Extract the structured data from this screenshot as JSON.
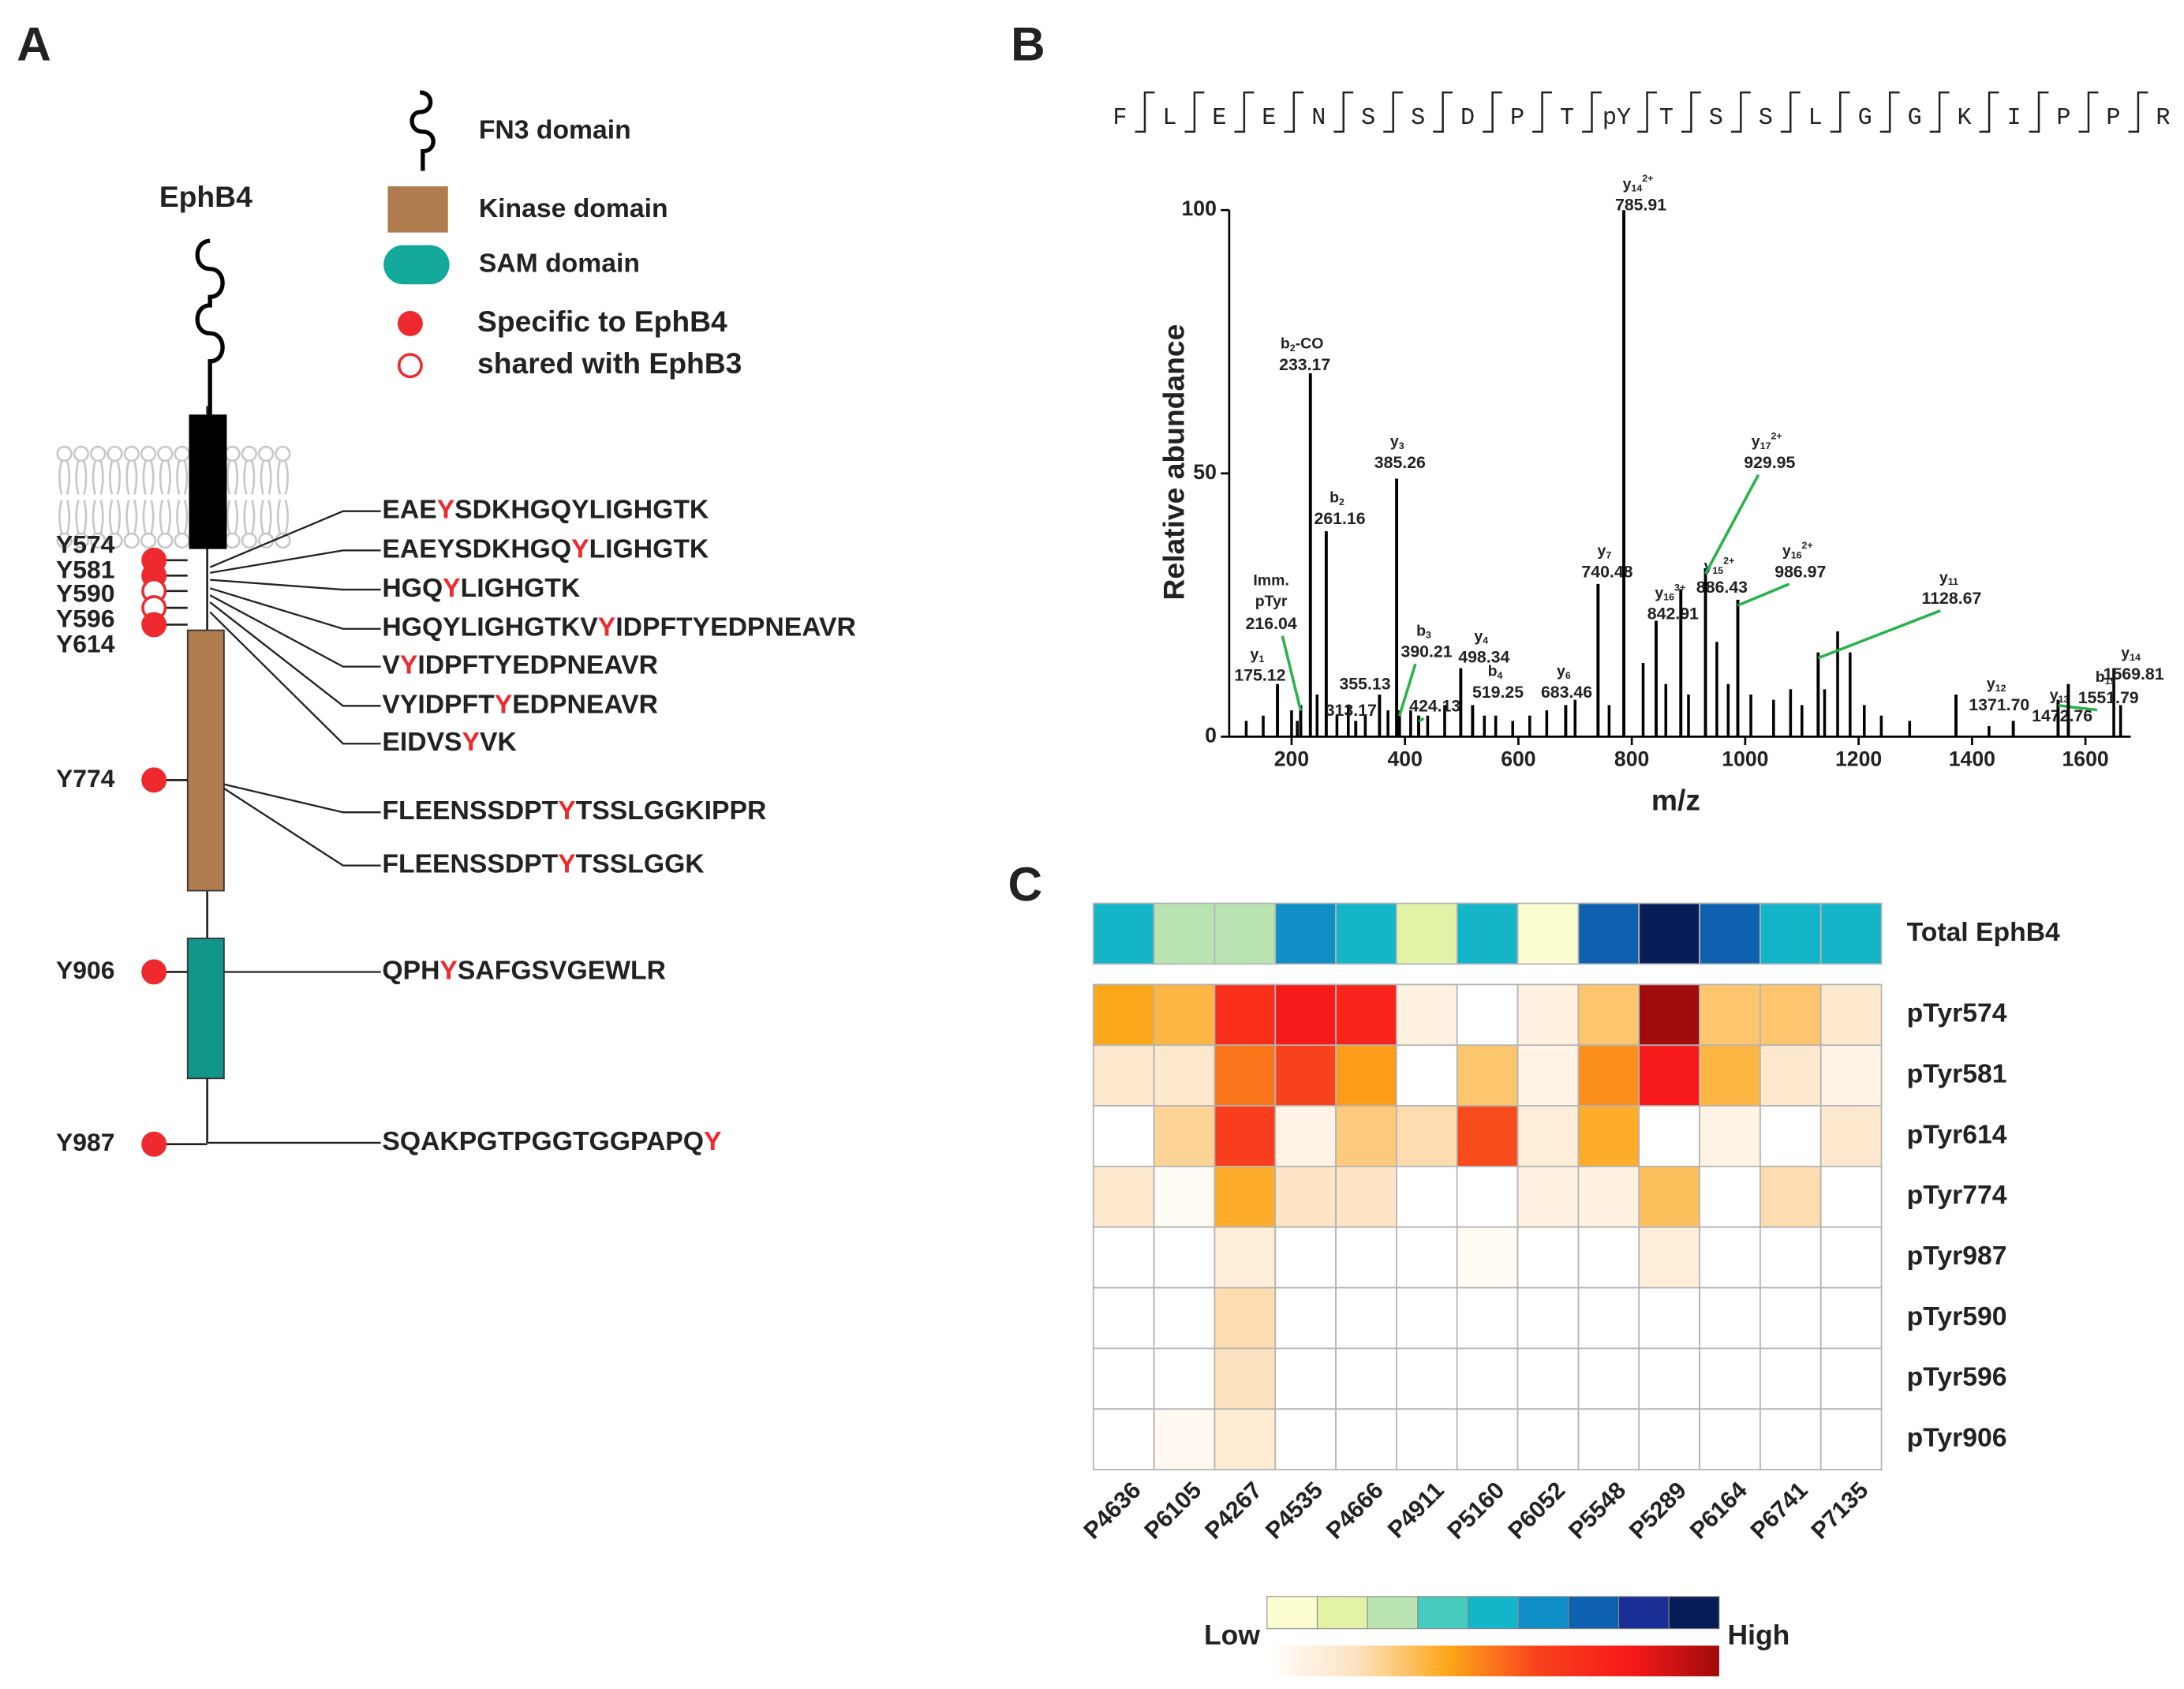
{
  "panel_labels": [
    "A",
    "B",
    "C"
  ],
  "diagram": {
    "protein": "EphB4",
    "site_color": "#ee2a2e",
    "legend": {
      "fn3": "FN3 domain",
      "kinase": "Kinase domain",
      "sam": "SAM domain",
      "specific": "Specific to EphB4",
      "shared": "shared with EphB3"
    },
    "sites": [
      {
        "name": "Y574",
        "shared": false
      },
      {
        "name": "Y581",
        "shared": false
      },
      {
        "name": "Y590",
        "shared": true
      },
      {
        "name": "Y596",
        "shared": true
      },
      {
        "name": "Y614",
        "shared": false
      },
      {
        "name": "Y774",
        "shared": false
      },
      {
        "name": "Y906",
        "shared": false
      },
      {
        "name": "Y987",
        "shared": false
      }
    ],
    "peptides": [
      {
        "before": "EAE",
        "site": "Y",
        "after": "SDKHGQYLIGHGTK"
      },
      {
        "before": "EAEYSDKHGQ",
        "site": "Y",
        "after": "LIGHGTK"
      },
      {
        "before": "HGQ",
        "site": "Y",
        "after": "LIGHGTK"
      },
      {
        "before": "HGQYLIGHGTKV",
        "site": "Y",
        "after": "IDPFTYEDPNEAVR"
      },
      {
        "before": "V",
        "site": "Y",
        "after": "IDPFTYEDPNEAVR"
      },
      {
        "before": "VYIDPFT",
        "site": "Y",
        "after": "EDPNEAVR"
      },
      {
        "before": "EIDVS",
        "site": "Y",
        "after": "VK"
      },
      {
        "before": "FLEENSSDPT",
        "site": "Y",
        "after": "TSSLGGKIPPR"
      },
      {
        "before": "FLEENSSDPT",
        "site": "Y",
        "after": "TSSLGGK"
      },
      {
        "before": "QPH",
        "site": "Y",
        "after": "SAFGSVGEWLR"
      },
      {
        "before": "SQAKPGTPGGTGGPAPQ",
        "site": "Y"
      }
    ]
  },
  "sequence": [
    "F",
    "L",
    "E",
    "E",
    "N",
    "S",
    "S",
    "D",
    "P",
    "T",
    "pY",
    "T",
    "S",
    "S",
    "L",
    "G",
    "G",
    "K",
    "I",
    "P",
    "P",
    "R"
  ],
  "chart_data": [
    {
      "type": "spectrum",
      "xlabel": "m/z",
      "ylabel": "Relative abundance",
      "xlim": [
        90,
        1680
      ],
      "ylim": [
        0,
        100
      ],
      "xticks": [
        200,
        400,
        600,
        800,
        1000,
        1200,
        1400,
        1600
      ],
      "yticks": [
        0,
        50,
        100
      ],
      "color": "#000000",
      "x": [
        120,
        150,
        200,
        210,
        245,
        280,
        300,
        330,
        370,
        410,
        440,
        470,
        540,
        560,
        590,
        620,
        650,
        700,
        760,
        820,
        860,
        900,
        950,
        970,
        1010,
        1050,
        1080,
        1100,
        1140,
        1163,
        1185,
        1210,
        1240,
        1290,
        1430,
        1650,
        1662
      ],
      "values": [
        3,
        4,
        5,
        3,
        8,
        4,
        6,
        4,
        5,
        5,
        4,
        6,
        4,
        4,
        3,
        4,
        5,
        7,
        6,
        14,
        10,
        8,
        18,
        10,
        8,
        7,
        9,
        6,
        9,
        20,
        16,
        6,
        4,
        3,
        2,
        13,
        6
      ],
      "annotations": [
        {
          "x": 175.12,
          "y": 10,
          "ion": {
            "base": "y",
            "sub": "1"
          },
          "color": "#3a5bab"
        },
        {
          "x": 216.04,
          "y": 6,
          "ion": {
            "base": "Imm.",
            "line2": "pTyr"
          },
          "color": "#3cb8c8"
        },
        {
          "x": 233.17,
          "y": 69,
          "ion": {
            "base": "b",
            "sub": "2",
            "suffix": "-CO"
          },
          "color": "#d42a2a"
        },
        {
          "x": 261.16,
          "y": 39,
          "ion": {
            "base": "b",
            "sub": "2"
          },
          "color": "#d42a2a"
        },
        {
          "x": 313.17,
          "y": 3
        },
        {
          "x": 355.13,
          "y": 8
        },
        {
          "x": 385.26,
          "y": 49,
          "ion": {
            "base": "y",
            "sub": "3"
          },
          "color": "#3a5bab"
        },
        {
          "x": 390.21,
          "y": 5,
          "ion": {
            "base": "b",
            "sub": "3"
          },
          "color": "#d42a2a"
        },
        {
          "x": 424.13,
          "y": 4
        },
        {
          "x": 498.34,
          "y": 13,
          "ion": {
            "base": "y",
            "sub": "4"
          },
          "color": "#3a5bab"
        },
        {
          "x": 519.25,
          "y": 6,
          "ion": {
            "base": "b",
            "sub": "4"
          },
          "color": "#d42a2a"
        },
        {
          "x": 683.46,
          "y": 6,
          "ion": {
            "base": "y",
            "sub": "6"
          },
          "color": "#3a5bab"
        },
        {
          "x": 740.48,
          "y": 29,
          "ion": {
            "base": "y",
            "sub": "7"
          },
          "color": "#3a5bab"
        },
        {
          "x": 785.91,
          "y": 100,
          "ion": {
            "base": "y",
            "sub": "14",
            "sup": "2+"
          },
          "color": "#3a5bab"
        },
        {
          "x": 842.91,
          "y": 22,
          "ion": {
            "base": "y",
            "sub": "16",
            "sup": "3+"
          },
          "color": "#3a5bab"
        },
        {
          "x": 886.43,
          "y": 28,
          "ion": {
            "base": "y",
            "sub": "15",
            "sup": "2+"
          },
          "color": "#3a5bab"
        },
        {
          "x": 929.95,
          "y": 32,
          "ion": {
            "base": "y",
            "sub": "17",
            "sup": "2+"
          },
          "color": "#3a5bab"
        },
        {
          "x": 986.97,
          "y": 26,
          "ion": {
            "base": "y",
            "sub": "16",
            "sup": "2+"
          },
          "color": "#3a5bab"
        },
        {
          "x": 1128.67,
          "y": 16,
          "ion": {
            "base": "y",
            "sub": "11"
          },
          "color": "#3a5bab"
        },
        {
          "x": 1371.7,
          "label": "1371.70",
          "y": 8,
          "ion": {
            "base": "y",
            "sub": "12"
          },
          "color": "#3a5bab"
        },
        {
          "x": 1472.76,
          "y": 3,
          "ion": {
            "base": "y",
            "sub": "13"
          },
          "color": "#3a5bab"
        },
        {
          "x": 1551.79,
          "y": 7,
          "ion": {
            "base": "b",
            "sub": "15"
          },
          "color": "#d42a2a"
        },
        {
          "x": 1569.81,
          "y": 10,
          "ion": {
            "base": "y",
            "sub": "14"
          },
          "color": "#3a5bab"
        }
      ]
    },
    {
      "type": "heatmap",
      "columns": [
        "P4636",
        "P6105",
        "P4267",
        "P4535",
        "P4666",
        "P4911",
        "P5160",
        "P6052",
        "P5548",
        "P5289",
        "P6164",
        "P6741",
        "P7135"
      ],
      "scale_labels": [
        "Low",
        "High"
      ],
      "groups": [
        {
          "rows": [
            "Total EphB4"
          ],
          "colors": [
            "#fbfdd0",
            "#e2f3a8",
            "#b9e4b1",
            "#47cbbd",
            "#14b5c9",
            "#0f8fc6",
            "#0d61ae",
            "#1a2f96",
            "#081d58"
          ],
          "values": [
            [
              0.5,
              0.25,
              0.25,
              0.625,
              0.5,
              0.125,
              0.5,
              0,
              0.75,
              1,
              0.75,
              0.5,
              0.5
            ]
          ]
        },
        {
          "rows": [
            "pTyr574",
            "pTyr581",
            "pTyr614",
            "pTyr774",
            "pTyr987",
            "pTyr590",
            "pTyr596",
            "pTyr906"
          ],
          "colors": [
            "#ffffff",
            "#fde2bf",
            "#fda71a",
            "#f8421c",
            "#f81a1a",
            "#a10b0b"
          ],
          "values": [
            [
              0.4,
              0.35,
              0.7,
              0.8,
              0.75,
              0.1,
              0,
              0.1,
              0.3,
              1,
              0.3,
              0.3,
              0.15
            ],
            [
              0.15,
              0.15,
              0.5,
              0.6,
              0.42,
              0,
              0.3,
              0.08,
              0.45,
              0.8,
              0.35,
              0.15,
              0.08
            ],
            [
              0,
              0.25,
              0.62,
              0.08,
              0.28,
              0.22,
              0.58,
              0.12,
              0.38,
              0,
              0.08,
              0,
              0.15
            ],
            [
              0.15,
              0.03,
              0.38,
              0.18,
              0.18,
              0,
              0,
              0.1,
              0.1,
              0.32,
              0,
              0.22,
              0
            ],
            [
              0,
              0,
              0.12,
              0,
              0,
              0,
              0.03,
              0,
              0,
              0.12,
              0,
              0,
              0
            ],
            [
              0,
              0,
              0.22,
              0,
              0,
              0,
              0,
              0,
              0,
              0,
              0,
              0,
              0
            ],
            [
              0,
              0,
              0.2,
              0,
              0,
              0,
              0,
              0,
              0,
              0,
              0,
              0,
              0
            ],
            [
              0,
              0.04,
              0.14,
              0,
              0,
              0,
              0,
              0,
              0,
              0,
              0,
              0,
              0
            ]
          ]
        }
      ]
    }
  ]
}
